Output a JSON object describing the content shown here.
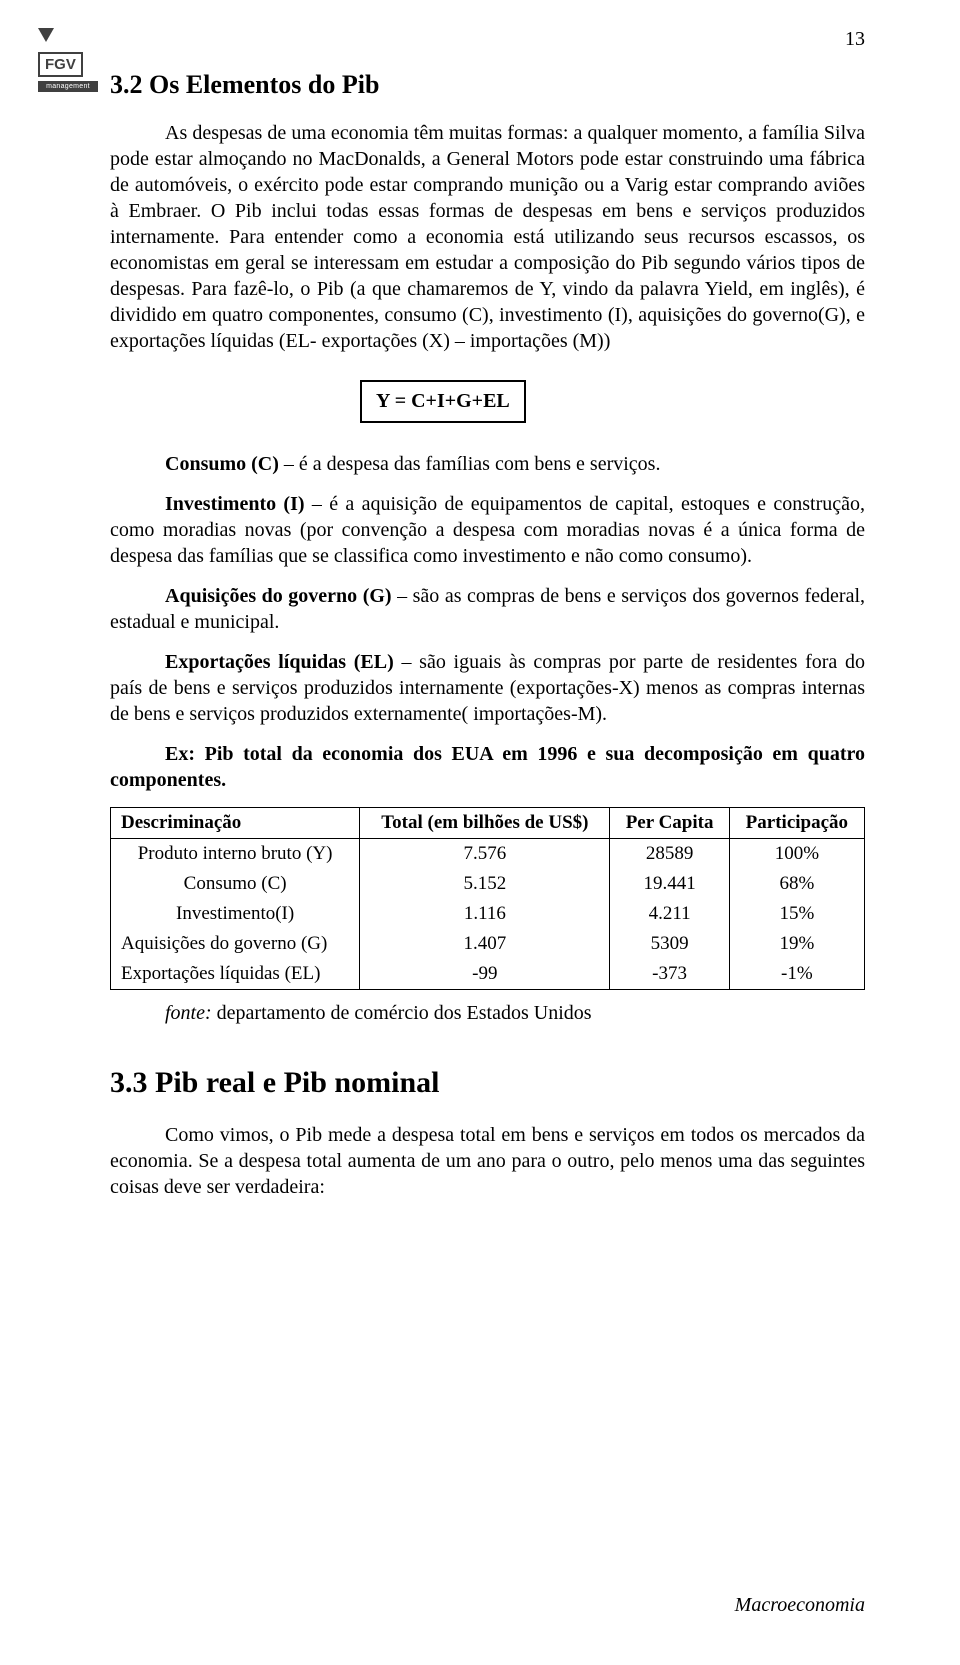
{
  "page_number": "13",
  "logo": {
    "text": "FGV",
    "sub": "management"
  },
  "section_title": "3.2 Os Elementos do Pib",
  "intro_paragraph": "As despesas de uma economia têm muitas formas: a qualquer momento, a família Silva pode estar almoçando no MacDonalds, a General Motors pode estar construindo uma fábrica de automóveis, o exército pode estar comprando munição ou a Varig estar comprando aviões à Embraer. O Pib inclui todas essas formas de despesas em bens e serviços produzidos internamente. Para entender como a economia está utilizando seus recursos escassos, os economistas em geral se interessam em estudar a composição do Pib segundo vários tipos de despesas. Para fazê-lo, o Pib (a que chamaremos de Y, vindo da palavra Yield, em inglês), é dividido em quatro componentes, consumo (C), investimento (I), aquisições do governo(G), e exportações líquidas (EL- exportações (X) – importações (M))",
  "formula": "Y = C+I+G+EL",
  "defs": {
    "c_b": "Consumo (C)",
    "c_t": " – é a despesa das famílias com bens e serviços.",
    "i_b": "Investimento (I)",
    "i_t": " – é a aquisição de equipamentos de capital, estoques e construção, como moradias novas (por convenção a despesa com moradias novas é a única forma de despesa das famílias que se classifica como investimento e não como consumo).",
    "g_b": "Aquisições do governo (G)",
    "g_t": " – são as compras de bens e serviços dos governos federal, estadual e municipal.",
    "el_b": "Exportações líquidas (EL)",
    "el_t": " – são iguais às compras por parte de residentes fora do país de bens e serviços produzidos internamente (exportações-X) menos as compras internas de bens e serviços produzidos externamente( importações-M).",
    "ex_b": "Ex: Pib total da economia dos EUA em 1996 e sua decomposição em quatro componentes."
  },
  "table": {
    "headers": [
      "Descriminação",
      "Total (em bilhões de US$)",
      "Per Capita",
      "Participação"
    ],
    "rows": [
      [
        "Produto interno bruto (Y)",
        "7.576",
        "28589",
        "100%"
      ],
      [
        "Consumo (C)",
        "5.152",
        "19.441",
        "68%"
      ],
      [
        "Investimento(I)",
        "1.116",
        "4.211",
        "15%"
      ],
      [
        "Aquisições do governo (G)",
        "1.407",
        "5309",
        "19%"
      ],
      [
        "Exportações líquidas (EL)",
        "-99",
        "-373",
        "-1%"
      ]
    ]
  },
  "source_it": "fonte:",
  "source_tx": " departamento de comércio dos Estados Unidos",
  "section2_title": "3.3 Pib real e Pib nominal",
  "section2_para": "Como vimos, o Pib mede a despesa total em bens e serviços em todos os mercados da economia. Se a despesa total aumenta de um ano para o outro, pelo menos uma das seguintes coisas deve ser verdadeira:",
  "footer": "Macroeconomia"
}
